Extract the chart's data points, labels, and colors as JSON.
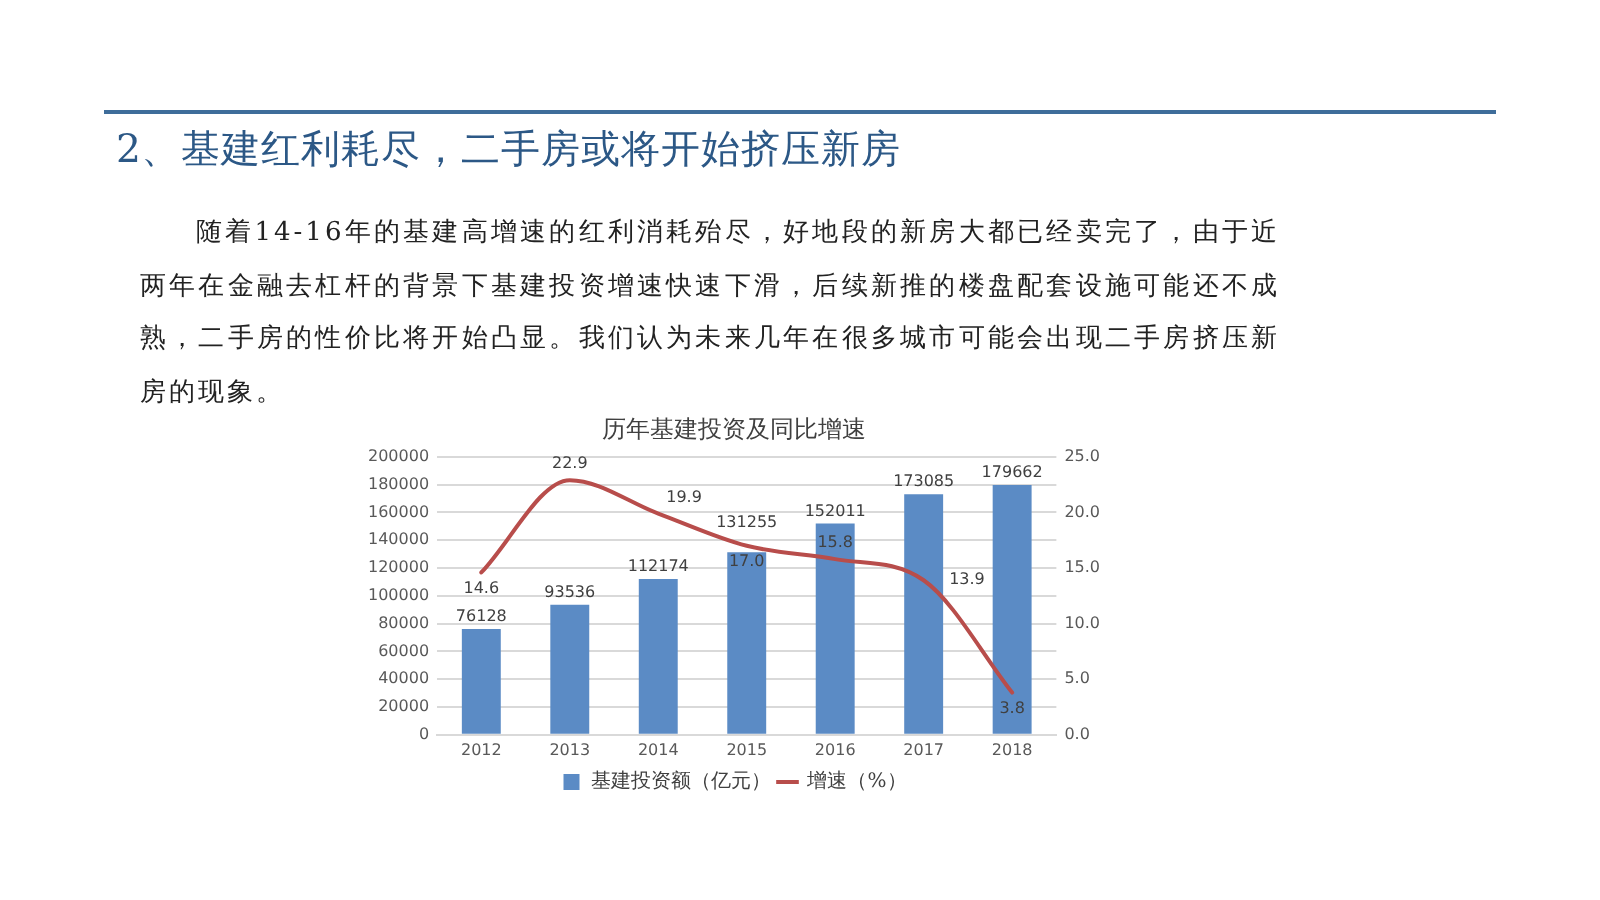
{
  "chart_data": {
    "type": "bar",
    "title": "历年基建投资及同比增速",
    "subtitle": "2、基建红利耗尽，二手房或将开始挤压新房",
    "annotations": [
      "随着14-16年的基建高增速的红利消耗殆尽，好地段的新房大都已经卖完了，由于近两年在金融去杠杆的背景下基建投资增速快速下滑，后续新推的楼盘配套设施可能还不成熟，二手房的性价比将开始凸显。我们认为未来几年在很多城市可能会出现二手房挤压新房的现象。"
    ],
    "categories": [
      "2012",
      "2013",
      "2014",
      "2015",
      "2016",
      "2017",
      "2018"
    ],
    "series": [
      {
        "name": "基建投资额（亿元）",
        "color": "#5b8bc5",
        "values": [
          76128,
          93536,
          112174,
          131255,
          152011,
          173085,
          179662
        ]
      },
      {
        "name": "增速（%）",
        "type": "line",
        "axis": "y2",
        "color": "#b84d4b",
        "values": [
          14.6,
          22.9,
          19.9,
          17.0,
          15.8,
          13.9,
          3.8
        ],
        "value_labels": [
          "14.6",
          "22.9",
          "19.9",
          "17.0",
          "15.8",
          "13.9",
          "3.8"
        ]
      }
    ],
    "ylim": [
      0,
      200000
    ],
    "yticks": [
      0,
      20000,
      40000,
      60000,
      80000,
      100000,
      120000,
      140000,
      160000,
      180000,
      200000
    ],
    "y2lim": [
      0,
      25
    ],
    "y2ticks": [
      {
        "value": 0,
        "label": "0.0"
      },
      {
        "value": 5,
        "label": "5.0"
      },
      {
        "value": 10,
        "label": "10.0"
      },
      {
        "value": 15,
        "label": "15.0"
      },
      {
        "value": 20,
        "label": "20.0"
      },
      {
        "value": 25,
        "label": "25.0"
      }
    ],
    "grid": "y",
    "legend": "bottom",
    "marker": "none",
    "line_style": "solid",
    "data_labels": true
  }
}
